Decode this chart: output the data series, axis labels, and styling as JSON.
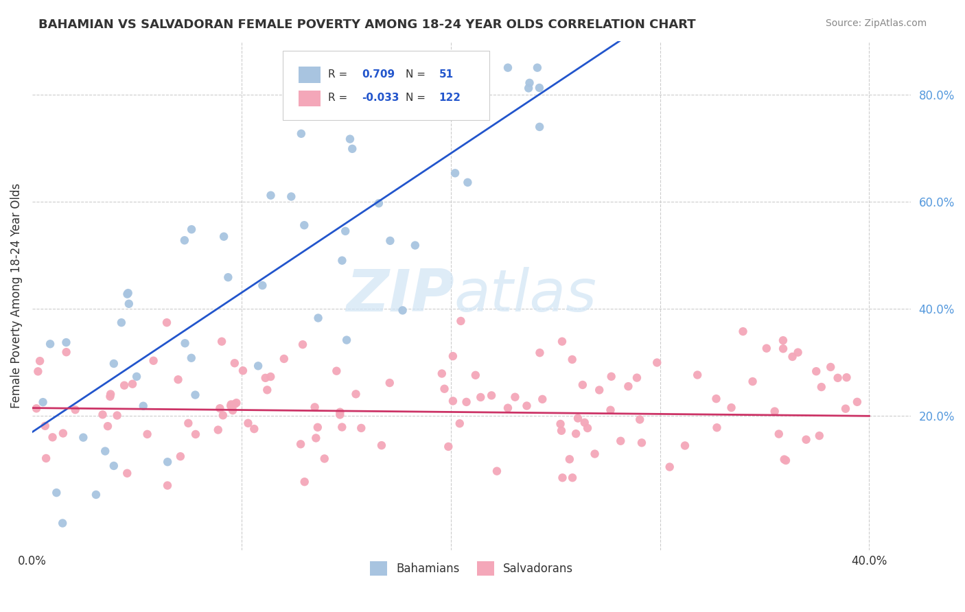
{
  "title": "BAHAMIAN VS SALVADORAN FEMALE POVERTY AMONG 18-24 YEAR OLDS CORRELATION CHART",
  "source": "Source: ZipAtlas.com",
  "ylabel": "Female Poverty Among 18-24 Year Olds",
  "bahamian_R": 0.709,
  "bahamian_N": 51,
  "salvadoran_R": -0.033,
  "salvadoran_N": 122,
  "bahamian_color": "#a8c4e0",
  "salvadoran_color": "#f4a7b9",
  "trendline_blue": "#2255cc",
  "trendline_pink": "#cc3366",
  "background_color": "#ffffff",
  "grid_color": "#cccccc",
  "xlim": [
    0.0,
    0.42
  ],
  "ylim": [
    -0.05,
    0.9
  ],
  "right_ytick_vals": [
    0.8,
    0.6,
    0.4,
    0.2
  ],
  "right_ytick_labels": [
    "80.0%",
    "60.0%",
    "40.0%",
    "20.0%"
  ],
  "watermark_color": "#d0e4f5"
}
